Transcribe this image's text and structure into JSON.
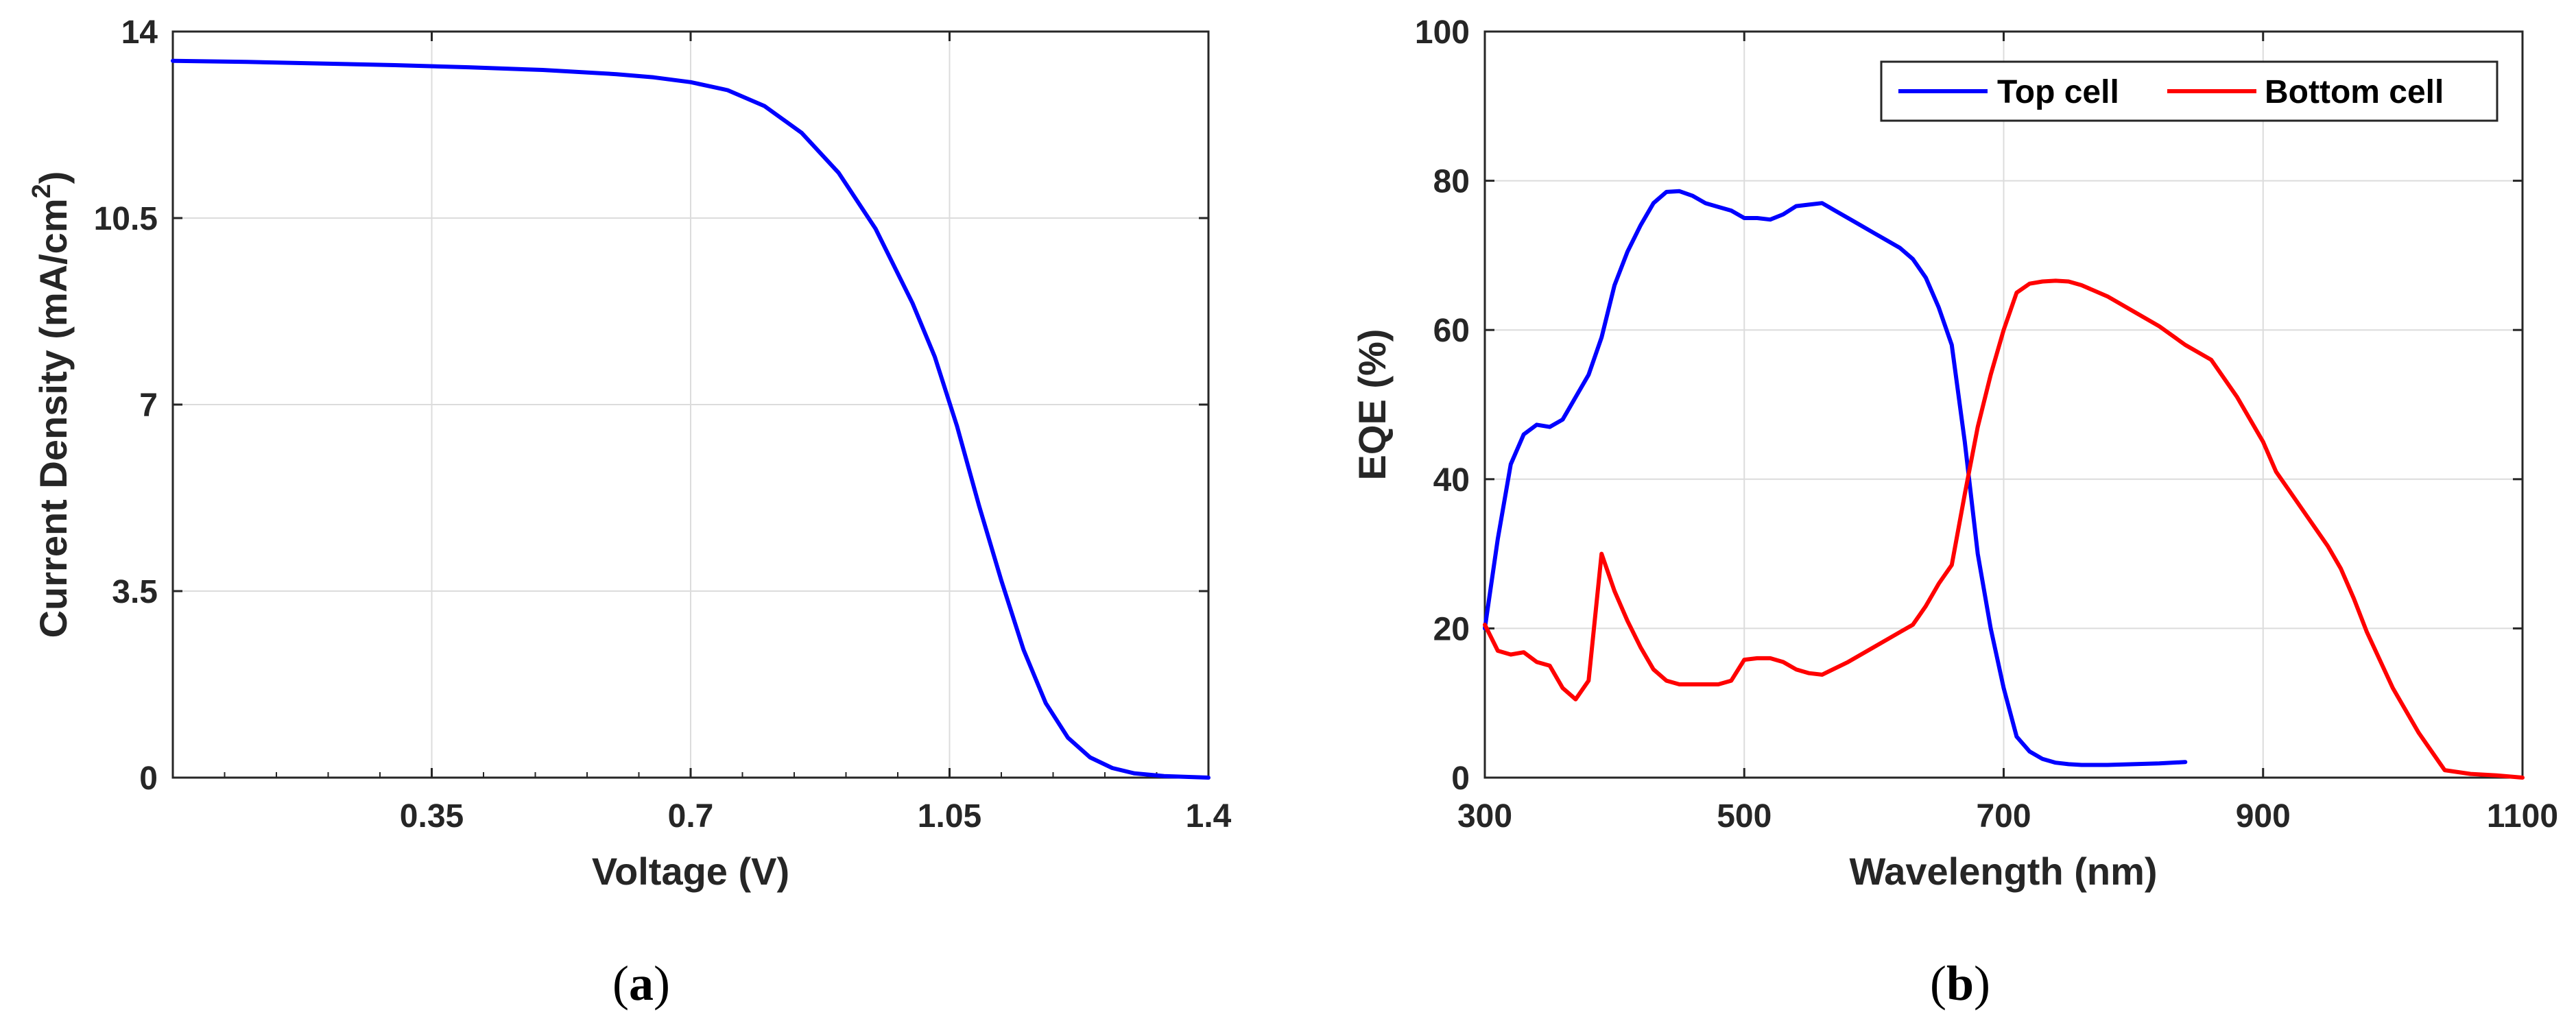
{
  "chart_data": [
    {
      "type": "line",
      "panel_label": "a",
      "title": "",
      "xlabel": "Voltage (V)",
      "ylabel": "Current Density (mA/cm",
      "ylabel_sup": "2",
      "ylabel_close": ")",
      "xlim": [
        0,
        1.4
      ],
      "ylim": [
        0,
        14
      ],
      "xticks": [
        0.35,
        0.7,
        1.05,
        1.4
      ],
      "xtick_labels": [
        "0.35",
        "0.7",
        "1.05",
        "1.4"
      ],
      "yticks": [
        0,
        3.5,
        7,
        10.5,
        14
      ],
      "ytick_labels": [
        "0",
        "3.5",
        "7",
        "10.5",
        "14"
      ],
      "grid": true,
      "series": [
        {
          "color": "#0000ff",
          "x": [
            0,
            0.1,
            0.2,
            0.3,
            0.4,
            0.5,
            0.6,
            0.65,
            0.7,
            0.75,
            0.8,
            0.85,
            0.9,
            0.95,
            1.0,
            1.03,
            1.06,
            1.09,
            1.12,
            1.15,
            1.18,
            1.21,
            1.24,
            1.27,
            1.3,
            1.34,
            1.38,
            1.4
          ],
          "y": [
            13.45,
            13.43,
            13.4,
            13.37,
            13.33,
            13.28,
            13.2,
            13.14,
            13.05,
            12.9,
            12.6,
            12.1,
            11.35,
            10.3,
            8.9,
            7.9,
            6.6,
            5.1,
            3.7,
            2.4,
            1.4,
            0.75,
            0.38,
            0.18,
            0.08,
            0.03,
            0.01,
            0.0
          ]
        }
      ]
    },
    {
      "type": "line",
      "panel_label": "b",
      "title": "",
      "xlabel": "Wavelength (nm)",
      "ylabel": "EQE (%)",
      "xlim": [
        300,
        1100
      ],
      "ylim": [
        0,
        100
      ],
      "xticks": [
        300,
        500,
        700,
        900,
        1100
      ],
      "xtick_labels": [
        "300",
        "500",
        "700",
        "900",
        "1100"
      ],
      "yticks": [
        0,
        20,
        40,
        60,
        80,
        100
      ],
      "ytick_labels": [
        "0",
        "20",
        "40",
        "60",
        "80",
        "100"
      ],
      "grid": true,
      "legend": {
        "placement": "top-right",
        "orientation": "horizontal"
      },
      "series": [
        {
          "name": "Top cell",
          "color": "#0000ff",
          "x": [
            300,
            310,
            320,
            330,
            340,
            350,
            360,
            370,
            380,
            390,
            400,
            410,
            420,
            430,
            440,
            450,
            460,
            470,
            480,
            490,
            500,
            510,
            520,
            530,
            540,
            550,
            560,
            570,
            580,
            590,
            600,
            610,
            620,
            630,
            640,
            650,
            660,
            670,
            680,
            690,
            700,
            710,
            720,
            730,
            740,
            750,
            760,
            780,
            800,
            820,
            840
          ],
          "y": [
            20,
            32,
            42,
            46,
            47.3,
            47,
            48,
            51,
            54,
            59,
            66,
            70.5,
            74,
            77,
            78.5,
            78.6,
            78,
            77,
            76.5,
            76,
            75,
            75,
            74.8,
            75.5,
            76.6,
            76.8,
            77,
            76,
            75,
            74,
            73,
            72,
            71,
            69.5,
            67,
            63,
            58,
            45,
            30,
            20,
            12,
            5.5,
            3.5,
            2.5,
            2,
            1.8,
            1.7,
            1.7,
            1.8,
            1.9,
            2.1
          ]
        },
        {
          "name": "Bottom cell",
          "color": "#ff0000",
          "x": [
            300,
            310,
            320,
            330,
            340,
            350,
            360,
            370,
            380,
            390,
            400,
            410,
            420,
            430,
            440,
            450,
            460,
            480,
            490,
            500,
            510,
            520,
            530,
            540,
            550,
            560,
            580,
            600,
            620,
            630,
            640,
            650,
            660,
            670,
            680,
            690,
            700,
            710,
            720,
            730,
            740,
            750,
            760,
            780,
            800,
            820,
            840,
            860,
            880,
            900,
            910,
            920,
            930,
            940,
            950,
            960,
            970,
            980,
            1000,
            1020,
            1040,
            1060,
            1080,
            1100
          ],
          "y": [
            20.5,
            17,
            16.5,
            16.8,
            15.5,
            15,
            12,
            10.5,
            13,
            30,
            25,
            21,
            17.5,
            14.5,
            13,
            12.5,
            12.5,
            12.5,
            13,
            15.8,
            16,
            16,
            15.5,
            14.5,
            14,
            13.8,
            15.5,
            17.5,
            19.5,
            20.5,
            23,
            26,
            28.5,
            38,
            47,
            54,
            60,
            65,
            66.2,
            66.5,
            66.6,
            66.5,
            66,
            64.5,
            62.5,
            60.5,
            58,
            56,
            51,
            45,
            41,
            38.5,
            36,
            33.5,
            31,
            28,
            24,
            19.5,
            12,
            6,
            1,
            0.5,
            0.3,
            0
          ]
        }
      ]
    }
  ]
}
